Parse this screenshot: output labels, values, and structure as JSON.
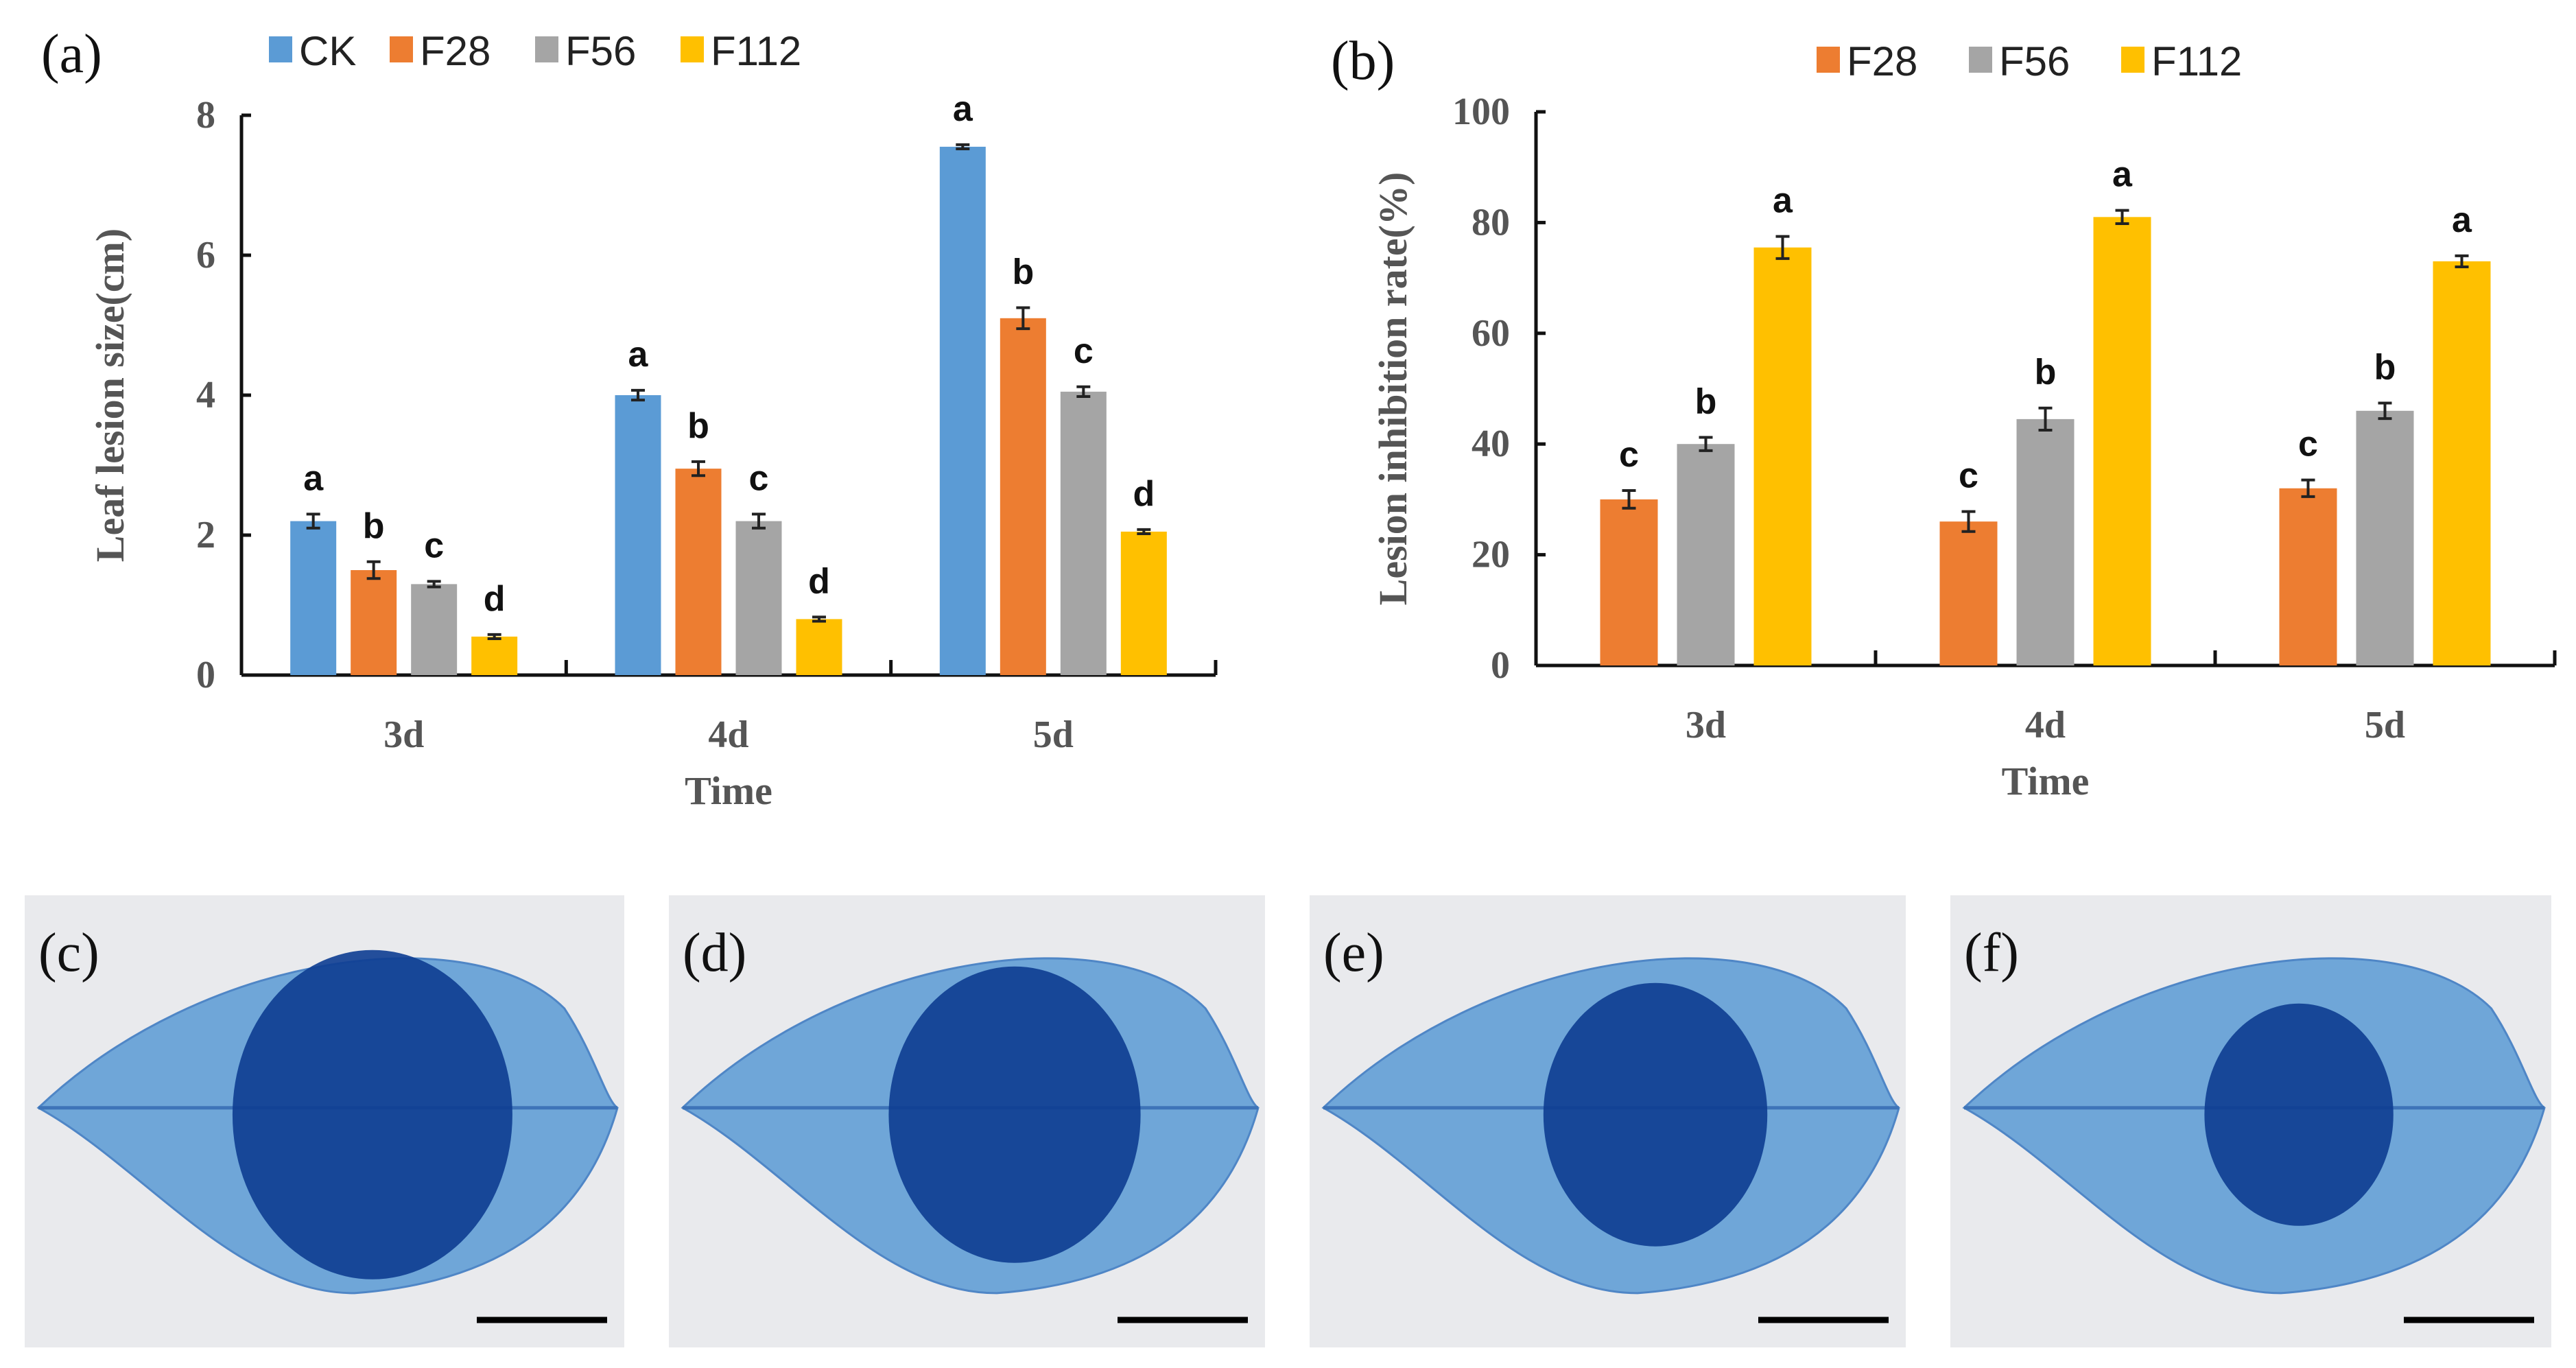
{
  "colors": {
    "CK": "#5b9bd5",
    "F28": "#ed7d31",
    "F56": "#a5a5a5",
    "F112": "#ffc000",
    "axis": "#111111",
    "leaf": "#6fa6d8",
    "lesion": "#0d3d91",
    "photo_bg": "#e9eaed"
  },
  "chart_data": [
    {
      "type": "bar",
      "panel_label": "(a)",
      "categories": [
        "3d",
        "4d",
        "5d"
      ],
      "series": [
        {
          "name": "CK",
          "values": [
            2.2,
            4.0,
            7.55
          ],
          "errors": [
            0.1,
            0.07,
            0.03
          ],
          "letters": [
            "a",
            "a",
            "a"
          ]
        },
        {
          "name": "F28",
          "values": [
            1.5,
            2.95,
            5.1
          ],
          "errors": [
            0.12,
            0.1,
            0.15
          ],
          "letters": [
            "b",
            "b",
            "b"
          ]
        },
        {
          "name": "F56",
          "values": [
            1.3,
            2.2,
            4.05
          ],
          "errors": [
            0.04,
            0.1,
            0.07
          ],
          "letters": [
            "c",
            "c",
            "c"
          ]
        },
        {
          "name": "F112",
          "values": [
            0.55,
            0.8,
            2.05
          ],
          "errors": [
            0.03,
            0.03,
            0.03
          ],
          "letters": [
            "d",
            "d",
            "d"
          ]
        }
      ],
      "xlabel": "Time",
      "ylabel": "Leaf lesion size(cm)",
      "ylim": [
        0,
        8
      ],
      "yticks": [
        "0",
        "2",
        "4",
        "6",
        "8"
      ],
      "legend": "top",
      "grid": false
    },
    {
      "type": "bar",
      "panel_label": "(b)",
      "categories": [
        "3d",
        "4d",
        "5d"
      ],
      "series": [
        {
          "name": "F28",
          "values": [
            30,
            26,
            32
          ],
          "errors": [
            1.6,
            1.8,
            1.5
          ],
          "letters": [
            "c",
            "c",
            "c"
          ]
        },
        {
          "name": "F56",
          "values": [
            40,
            44.5,
            46
          ],
          "errors": [
            1.2,
            2.0,
            1.4
          ],
          "letters": [
            "b",
            "b",
            "b"
          ]
        },
        {
          "name": "F112",
          "values": [
            75.5,
            81,
            73
          ],
          "errors": [
            2.0,
            1.2,
            1.0
          ],
          "letters": [
            "a",
            "a",
            "a"
          ]
        }
      ],
      "xlabel": "Time",
      "ylabel": "Lesion inhibition rate(%)",
      "ylim": [
        0,
        100
      ],
      "yticks": [
        "0",
        "20",
        "40",
        "60",
        "80",
        "100"
      ],
      "legend": "top",
      "grid": false
    }
  ],
  "photos": [
    {
      "label": "(c)",
      "lesion": 1.0
    },
    {
      "label": "(d)",
      "lesion": 0.8
    },
    {
      "label": "(e)",
      "lesion": 0.6
    },
    {
      "label": "(f)",
      "lesion": 0.35
    }
  ]
}
